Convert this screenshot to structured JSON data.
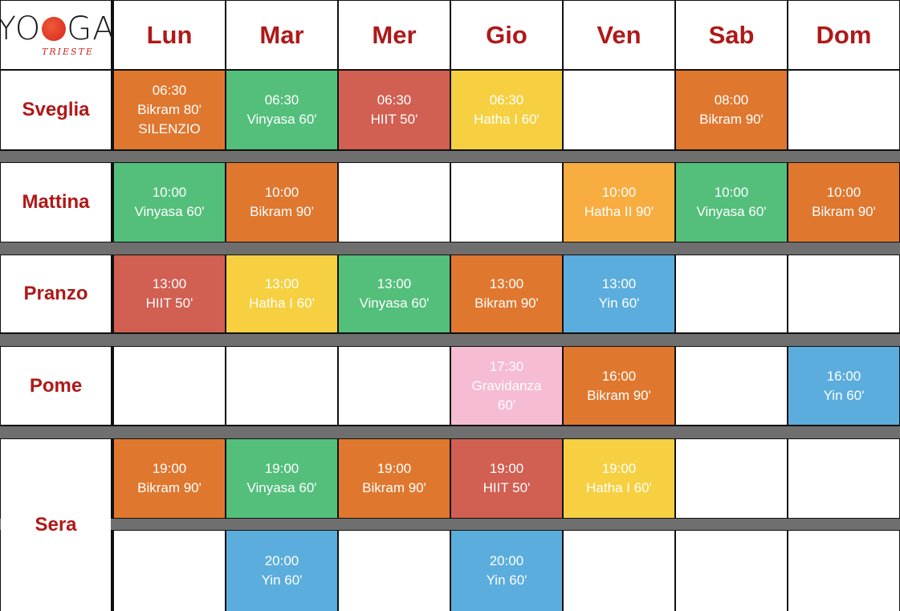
{
  "logo": {
    "text_before": "YO",
    "text_after": "GA",
    "subtitle": "TRIESTE",
    "icon": "sun-icon"
  },
  "days": [
    "Lun",
    "Mar",
    "Mer",
    "Gio",
    "Ven",
    "Sab",
    "Dom"
  ],
  "colors": {
    "bikram": "#e0772f",
    "vinyasa": "#53bf7b",
    "hiit": "#d15f52",
    "hatha": "#f6d041",
    "hatha2": "#f8ad40",
    "yin": "#5badde",
    "gravidanza": "#f6bcd3",
    "separator": "#6f6f6f",
    "header_text": "#b01818"
  },
  "rows": [
    {
      "label": "Sveglia",
      "cells": [
        {
          "time": "06:30",
          "lines": [
            "Bikram 80'",
            "SILENZIO"
          ],
          "kind": "bikram"
        },
        {
          "time": "06:30",
          "lines": [
            "Vinyasa 60'"
          ],
          "kind": "vinyasa"
        },
        {
          "time": "06:30",
          "lines": [
            "HIIT 50'"
          ],
          "kind": "hiit"
        },
        {
          "time": "06:30",
          "lines": [
            "Hatha I 60'"
          ],
          "kind": "hatha"
        },
        null,
        {
          "time": "08:00",
          "lines": [
            "Bikram 90'"
          ],
          "kind": "bikram"
        },
        null
      ]
    },
    {
      "label": "Mattina",
      "cells": [
        {
          "time": "10:00",
          "lines": [
            "Vinyasa 60'"
          ],
          "kind": "vinyasa"
        },
        {
          "time": "10:00",
          "lines": [
            "Bikram 90'"
          ],
          "kind": "bikram"
        },
        null,
        null,
        {
          "time": "10:00",
          "lines": [
            "Hatha II 90'"
          ],
          "kind": "hatha2"
        },
        {
          "time": "10:00",
          "lines": [
            "Vinyasa 60'"
          ],
          "kind": "vinyasa"
        },
        {
          "time": "10:00",
          "lines": [
            "Bikram 90'"
          ],
          "kind": "bikram"
        }
      ]
    },
    {
      "label": "Pranzo",
      "cells": [
        {
          "time": "13:00",
          "lines": [
            "HIIT 50'"
          ],
          "kind": "hiit"
        },
        {
          "time": "13:00",
          "lines": [
            "Hatha I 60'"
          ],
          "kind": "hatha"
        },
        {
          "time": "13:00",
          "lines": [
            "Vinyasa 60'"
          ],
          "kind": "vinyasa"
        },
        {
          "time": "13:00",
          "lines": [
            "Bikram 90'"
          ],
          "kind": "bikram"
        },
        {
          "time": "13:00",
          "lines": [
            "Yin 60'"
          ],
          "kind": "yin"
        },
        null,
        null
      ]
    },
    {
      "label": "Pome",
      "cells": [
        null,
        null,
        null,
        {
          "time": "17:30",
          "lines": [
            "Gravidanza",
            "60'"
          ],
          "kind": "gravidanza"
        },
        {
          "time": "16:00",
          "lines": [
            "Bikram 90'"
          ],
          "kind": "bikram"
        },
        null,
        {
          "time": "16:00",
          "lines": [
            "Yin 60'"
          ],
          "kind": "yin"
        }
      ]
    },
    {
      "label": "Sera",
      "cells": [
        {
          "time": "19:00",
          "lines": [
            "Bikram 90'"
          ],
          "kind": "bikram"
        },
        {
          "time": "19:00",
          "lines": [
            "Vinyasa 60'"
          ],
          "kind": "vinyasa"
        },
        {
          "time": "19:00",
          "lines": [
            "Bikram 90'"
          ],
          "kind": "bikram"
        },
        {
          "time": "19:00",
          "lines": [
            "HIIT 50'"
          ],
          "kind": "hiit"
        },
        {
          "time": "19:00",
          "lines": [
            "Hatha I 60'"
          ],
          "kind": "hatha"
        },
        null,
        null
      ],
      "cells2": [
        null,
        {
          "time": "20:00",
          "lines": [
            "Yin 60'"
          ],
          "kind": "yin"
        },
        null,
        {
          "time": "20:00",
          "lines": [
            "Yin 60'"
          ],
          "kind": "yin"
        },
        null,
        null,
        null
      ]
    }
  ]
}
